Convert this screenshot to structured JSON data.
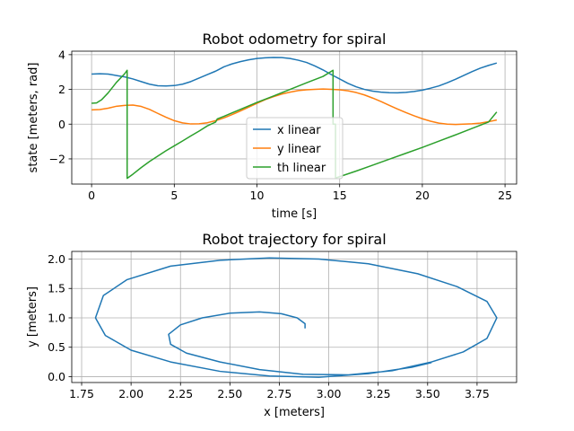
{
  "chart_data": [
    {
      "type": "line",
      "title": "Robot odometry for spiral",
      "xlabel": "time [s]",
      "ylabel": "state [meters, rad]",
      "xlim": [
        -1.2,
        25.7
      ],
      "ylim": [
        -3.45,
        4.2
      ],
      "xticks": [
        0,
        5,
        10,
        15,
        20,
        25
      ],
      "yticks": [
        -2,
        0,
        2,
        4
      ],
      "grid": true,
      "legend_position": "bottom-center",
      "series": [
        {
          "name": "x linear",
          "color": "#1f77b4",
          "points": [
            [
              0.0,
              2.88
            ],
            [
              0.5,
              2.9
            ],
            [
              1.0,
              2.88
            ],
            [
              1.5,
              2.8
            ],
            [
              2.0,
              2.72
            ],
            [
              2.5,
              2.6
            ],
            [
              3.0,
              2.45
            ],
            [
              3.5,
              2.3
            ],
            [
              4.0,
              2.21
            ],
            [
              4.5,
              2.2
            ],
            [
              5.0,
              2.22
            ],
            [
              5.5,
              2.3
            ],
            [
              6.0,
              2.45
            ],
            [
              6.5,
              2.65
            ],
            [
              7.0,
              2.85
            ],
            [
              7.5,
              3.05
            ],
            [
              7.6,
              3.1
            ],
            [
              8.0,
              3.3
            ],
            [
              8.5,
              3.47
            ],
            [
              9.0,
              3.6
            ],
            [
              9.5,
              3.7
            ],
            [
              10.0,
              3.78
            ],
            [
              10.5,
              3.82
            ],
            [
              11.0,
              3.84
            ],
            [
              11.5,
              3.83
            ],
            [
              12.0,
              3.78
            ],
            [
              12.5,
              3.68
            ],
            [
              13.0,
              3.55
            ],
            [
              13.5,
              3.35
            ],
            [
              14.0,
              3.12
            ],
            [
              14.5,
              2.85
            ],
            [
              15.0,
              2.6
            ],
            [
              15.5,
              2.35
            ],
            [
              16.0,
              2.15
            ],
            [
              16.5,
              2.0
            ],
            [
              17.0,
              1.9
            ],
            [
              17.5,
              1.84
            ],
            [
              18.0,
              1.81
            ],
            [
              18.5,
              1.8
            ],
            [
              19.0,
              1.83
            ],
            [
              19.5,
              1.88
            ],
            [
              20.0,
              1.96
            ],
            [
              20.5,
              2.07
            ],
            [
              21.0,
              2.2
            ],
            [
              21.5,
              2.38
            ],
            [
              22.0,
              2.58
            ],
            [
              22.5,
              2.8
            ],
            [
              23.0,
              3.02
            ],
            [
              23.5,
              3.22
            ],
            [
              24.0,
              3.38
            ],
            [
              24.5,
              3.52
            ]
          ]
        },
        {
          "name": "y linear",
          "color": "#ff7f0e",
          "points": [
            [
              0.0,
              0.82
            ],
            [
              0.5,
              0.84
            ],
            [
              1.0,
              0.92
            ],
            [
              1.5,
              1.03
            ],
            [
              2.0,
              1.08
            ],
            [
              2.5,
              1.1
            ],
            [
              3.0,
              1.02
            ],
            [
              3.5,
              0.85
            ],
            [
              4.0,
              0.62
            ],
            [
              4.5,
              0.4
            ],
            [
              5.0,
              0.2
            ],
            [
              5.5,
              0.07
            ],
            [
              6.0,
              0.01
            ],
            [
              6.5,
              0.02
            ],
            [
              7.0,
              0.08
            ],
            [
              7.5,
              0.2
            ],
            [
              8.0,
              0.36
            ],
            [
              8.5,
              0.55
            ],
            [
              9.0,
              0.76
            ],
            [
              9.5,
              0.98
            ],
            [
              10.0,
              1.2
            ],
            [
              10.5,
              1.41
            ],
            [
              11.0,
              1.58
            ],
            [
              11.5,
              1.73
            ],
            [
              12.0,
              1.84
            ],
            [
              12.5,
              1.93
            ],
            [
              13.0,
              1.98
            ],
            [
              13.5,
              2.0
            ],
            [
              14.0,
              2.02
            ],
            [
              14.5,
              2.0
            ],
            [
              15.0,
              1.98
            ],
            [
              15.5,
              1.92
            ],
            [
              16.0,
              1.82
            ],
            [
              16.5,
              1.68
            ],
            [
              17.0,
              1.5
            ],
            [
              17.5,
              1.3
            ],
            [
              18.0,
              1.08
            ],
            [
              18.5,
              0.87
            ],
            [
              19.0,
              0.67
            ],
            [
              19.5,
              0.48
            ],
            [
              20.0,
              0.31
            ],
            [
              20.5,
              0.17
            ],
            [
              21.0,
              0.06
            ],
            [
              21.5,
              0.0
            ],
            [
              22.0,
              -0.02
            ],
            [
              22.5,
              0.0
            ],
            [
              23.0,
              0.02
            ],
            [
              23.5,
              0.06
            ],
            [
              24.0,
              0.14
            ],
            [
              24.5,
              0.24
            ]
          ]
        },
        {
          "name": "th linear",
          "color": "#2ca02c",
          "points": [
            [
              0.0,
              1.2
            ],
            [
              0.3,
              1.22
            ],
            [
              0.6,
              1.4
            ],
            [
              1.0,
              1.8
            ],
            [
              1.5,
              2.4
            ],
            [
              2.0,
              2.9
            ],
            [
              2.15,
              3.1
            ],
            [
              2.15,
              -3.12
            ],
            [
              2.5,
              -2.88
            ],
            [
              3.0,
              -2.5
            ],
            [
              3.5,
              -2.15
            ],
            [
              4.0,
              -1.84
            ],
            [
              4.5,
              -1.53
            ],
            [
              5.0,
              -1.25
            ],
            [
              5.5,
              -0.97
            ],
            [
              6.0,
              -0.68
            ],
            [
              6.5,
              -0.4
            ],
            [
              7.0,
              -0.1
            ],
            [
              7.5,
              0.12
            ],
            [
              7.6,
              0.3
            ],
            [
              8.0,
              0.45
            ],
            [
              9.0,
              0.85
            ],
            [
              10.0,
              1.25
            ],
            [
              11.0,
              1.62
            ],
            [
              12.0,
              2.0
            ],
            [
              13.0,
              2.38
            ],
            [
              14.0,
              2.75
            ],
            [
              14.6,
              3.1
            ],
            [
              14.6,
              0.0
            ],
            [
              14.75,
              0.0
            ],
            [
              14.75,
              -3.1
            ],
            [
              15.0,
              -3.02
            ],
            [
              16.0,
              -2.7
            ],
            [
              17.0,
              -2.36
            ],
            [
              18.0,
              -2.02
            ],
            [
              19.0,
              -1.68
            ],
            [
              20.0,
              -1.34
            ],
            [
              21.0,
              -0.98
            ],
            [
              22.0,
              -0.62
            ],
            [
              23.0,
              -0.25
            ],
            [
              24.0,
              0.12
            ],
            [
              24.5,
              0.7
            ]
          ]
        }
      ]
    },
    {
      "type": "line",
      "title": "Robot trajectory for spiral",
      "xlabel": "x [meters]",
      "ylabel": "y [meters]",
      "xlim": [
        1.7,
        3.95
      ],
      "ylim": [
        -0.1,
        2.13
      ],
      "xticks": [
        1.75,
        2.0,
        2.25,
        2.5,
        2.75,
        3.0,
        3.25,
        3.5,
        3.75
      ],
      "xtick_labels": [
        "1.75",
        "2.00",
        "2.25",
        "2.50",
        "2.75",
        "3.00",
        "3.25",
        "3.50",
        "3.75"
      ],
      "yticks": [
        0.0,
        0.5,
        1.0,
        1.5,
        2.0
      ],
      "ytick_labels": [
        "0.0",
        "0.5",
        "1.0",
        "1.5",
        "2.0"
      ],
      "grid": true,
      "series": [
        {
          "color": "#1f77b4",
          "points": [
            [
              2.88,
              0.82
            ],
            [
              2.88,
              0.9
            ],
            [
              2.84,
              1.0
            ],
            [
              2.76,
              1.07
            ],
            [
              2.65,
              1.1
            ],
            [
              2.5,
              1.08
            ],
            [
              2.36,
              1.0
            ],
            [
              2.25,
              0.88
            ],
            [
              2.19,
              0.72
            ],
            [
              2.2,
              0.55
            ],
            [
              2.28,
              0.4
            ],
            [
              2.45,
              0.25
            ],
            [
              2.65,
              0.12
            ],
            [
              2.87,
              0.04
            ],
            [
              3.1,
              0.03
            ],
            [
              3.32,
              0.1
            ],
            [
              3.52,
              0.25
            ],
            [
              3.68,
              0.42
            ],
            [
              3.8,
              0.65
            ],
            [
              3.85,
              1.0
            ],
            [
              3.8,
              1.28
            ],
            [
              3.65,
              1.53
            ],
            [
              3.45,
              1.75
            ],
            [
              3.2,
              1.92
            ],
            [
              2.95,
              2.0
            ],
            [
              2.7,
              2.02
            ],
            [
              2.45,
              1.98
            ],
            [
              2.2,
              1.88
            ],
            [
              1.98,
              1.65
            ],
            [
              1.86,
              1.38
            ],
            [
              1.82,
              1.0
            ],
            [
              1.87,
              0.7
            ],
            [
              2.0,
              0.45
            ],
            [
              2.2,
              0.25
            ],
            [
              2.45,
              0.09
            ],
            [
              2.7,
              0.01
            ],
            [
              2.95,
              -0.01
            ],
            [
              3.2,
              0.05
            ],
            [
              3.42,
              0.16
            ],
            [
              3.52,
              0.24
            ]
          ]
        }
      ]
    }
  ]
}
